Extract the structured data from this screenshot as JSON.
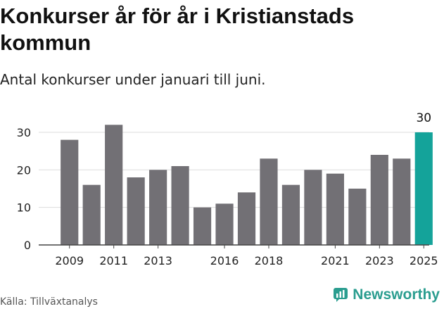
{
  "title": "Konkurser år för år i Kristianstads kommun",
  "subtitle": "Antal konkurser under januari till juni.",
  "source": "Källa: Tillväxtanalys",
  "brand": {
    "name": "Newsworthy",
    "logo_icon": "newsworthy-logo-icon"
  },
  "colors": {
    "bar": "#727075",
    "highlight": "#14a39a",
    "grid": "#dddddd",
    "axis": "#444444",
    "brand": "#2a9d8f"
  },
  "chart_data": {
    "type": "bar",
    "title": "",
    "xlabel": "",
    "ylabel": "",
    "x": [
      2009,
      2010,
      2011,
      2012,
      2013,
      2014,
      2015,
      2016,
      2017,
      2018,
      2019,
      2020,
      2021,
      2022,
      2023,
      2024,
      2025
    ],
    "values": [
      28,
      16,
      32,
      18,
      20,
      21,
      10,
      11,
      14,
      23,
      16,
      20,
      19,
      15,
      24,
      23,
      30
    ],
    "xtick_labels": [
      "2009",
      "2011",
      "2013",
      "2016",
      "2018",
      "2021",
      "2023",
      "2025"
    ],
    "yticks": [
      0,
      10,
      20,
      30
    ],
    "ylim": [
      0,
      33
    ],
    "grid": true,
    "highlight": {
      "x": 2025,
      "label": "30"
    }
  }
}
